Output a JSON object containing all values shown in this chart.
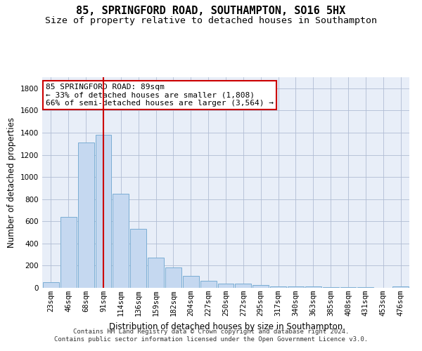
{
  "title": "85, SPRINGFORD ROAD, SOUTHAMPTON, SO16 5HX",
  "subtitle": "Size of property relative to detached houses in Southampton",
  "xlabel": "Distribution of detached houses by size in Southampton",
  "ylabel": "Number of detached properties",
  "bar_color": "#c5d8f0",
  "bar_edge_color": "#7aadd4",
  "background_color": "#e8eef8",
  "grid_color": "#b0bcd4",
  "vline_x_index": 3,
  "vline_color": "#cc0000",
  "annotation_text": "85 SPRINGFORD ROAD: 89sqm\n← 33% of detached houses are smaller (1,808)\n66% of semi-detached houses are larger (3,564) →",
  "annotation_box_color": "#cc0000",
  "categories": [
    "23sqm",
    "46sqm",
    "68sqm",
    "91sqm",
    "114sqm",
    "136sqm",
    "159sqm",
    "182sqm",
    "204sqm",
    "227sqm",
    "250sqm",
    "272sqm",
    "295sqm",
    "317sqm",
    "340sqm",
    "363sqm",
    "385sqm",
    "408sqm",
    "431sqm",
    "453sqm",
    "476sqm"
  ],
  "values": [
    50,
    640,
    1310,
    1380,
    850,
    530,
    275,
    185,
    105,
    65,
    40,
    35,
    25,
    15,
    10,
    10,
    8,
    7,
    5,
    3,
    15
  ],
  "ylim": [
    0,
    1900
  ],
  "yticks": [
    0,
    200,
    400,
    600,
    800,
    1000,
    1200,
    1400,
    1600,
    1800
  ],
  "footer_text": "Contains HM Land Registry data © Crown copyright and database right 2024.\nContains public sector information licensed under the Open Government Licence v3.0.",
  "title_fontsize": 11,
  "subtitle_fontsize": 9.5,
  "ylabel_fontsize": 8.5,
  "xlabel_fontsize": 8.5,
  "tick_fontsize": 7.5,
  "footer_fontsize": 6.5,
  "annotation_fontsize": 8
}
